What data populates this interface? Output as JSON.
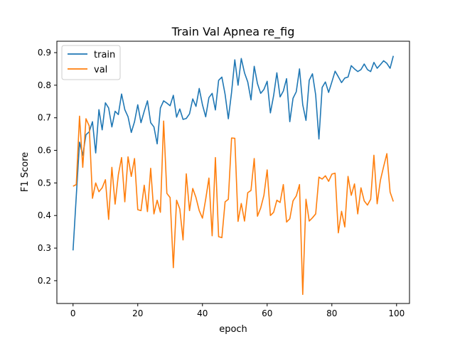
{
  "chart_data": {
    "type": "line",
    "title": "Train Val Apnea re_fig",
    "xlabel": "epoch",
    "ylabel": "F1 Score",
    "xlim": [
      -5,
      104
    ],
    "ylim": [
      0.13,
      0.935
    ],
    "xticks": [
      0,
      20,
      40,
      60,
      80,
      100
    ],
    "yticks": [
      0.2,
      0.3,
      0.4,
      0.5,
      0.6,
      0.7,
      0.8,
      0.9
    ],
    "grid": false,
    "legend_position": "top-left",
    "x": [
      0,
      1,
      2,
      3,
      4,
      5,
      6,
      7,
      8,
      9,
      10,
      11,
      12,
      13,
      14,
      15,
      16,
      17,
      18,
      19,
      20,
      21,
      22,
      23,
      24,
      25,
      26,
      27,
      28,
      29,
      30,
      31,
      32,
      33,
      34,
      35,
      36,
      37,
      38,
      39,
      40,
      41,
      42,
      43,
      44,
      45,
      46,
      47,
      48,
      49,
      50,
      51,
      52,
      53,
      54,
      55,
      56,
      57,
      58,
      59,
      60,
      61,
      62,
      63,
      64,
      65,
      66,
      67,
      68,
      69,
      70,
      71,
      72,
      73,
      74,
      75,
      76,
      77,
      78,
      79,
      80,
      81,
      82,
      83,
      84,
      85,
      86,
      87,
      88,
      89,
      90,
      91,
      92,
      93,
      94,
      95,
      96,
      97,
      98,
      99
    ],
    "series": [
      {
        "name": "train",
        "color": "#1f77b4",
        "values": [
          0.293,
          0.46,
          0.625,
          0.585,
          0.648,
          0.657,
          0.688,
          0.592,
          0.725,
          0.663,
          0.746,
          0.73,
          0.672,
          0.72,
          0.71,
          0.773,
          0.725,
          0.703,
          0.655,
          0.688,
          0.74,
          0.685,
          0.72,
          0.752,
          0.685,
          0.672,
          0.62,
          0.73,
          0.752,
          0.745,
          0.737,
          0.769,
          0.702,
          0.727,
          0.695,
          0.698,
          0.712,
          0.758,
          0.735,
          0.79,
          0.74,
          0.703,
          0.762,
          0.775,
          0.724,
          0.815,
          0.825,
          0.772,
          0.697,
          0.778,
          0.878,
          0.8,
          0.882,
          0.838,
          0.81,
          0.755,
          0.858,
          0.805,
          0.775,
          0.787,
          0.812,
          0.715,
          0.768,
          0.838,
          0.764,
          0.782,
          0.82,
          0.688,
          0.76,
          0.78,
          0.85,
          0.74,
          0.692,
          0.815,
          0.835,
          0.77,
          0.635,
          0.793,
          0.81,
          0.778,
          0.81,
          0.843,
          0.826,
          0.808,
          0.822,
          0.825,
          0.86,
          0.85,
          0.842,
          0.848,
          0.865,
          0.848,
          0.842,
          0.87,
          0.852,
          0.863,
          0.875,
          0.867,
          0.852,
          0.89
        ]
      },
      {
        "name": "val",
        "color": "#ff7f0e",
        "values": [
          0.49,
          0.495,
          0.705,
          0.548,
          0.697,
          0.675,
          0.453,
          0.5,
          0.473,
          0.485,
          0.51,
          0.388,
          0.548,
          0.435,
          0.525,
          0.578,
          0.442,
          0.58,
          0.52,
          0.575,
          0.418,
          0.415,
          0.493,
          0.412,
          0.545,
          0.405,
          0.447,
          0.41,
          0.69,
          0.468,
          0.455,
          0.24,
          0.447,
          0.42,
          0.325,
          0.528,
          0.415,
          0.483,
          0.455,
          0.415,
          0.392,
          0.45,
          0.515,
          0.338,
          0.578,
          0.335,
          0.332,
          0.442,
          0.45,
          0.638,
          0.637,
          0.382,
          0.437,
          0.383,
          0.47,
          0.477,
          0.575,
          0.398,
          0.423,
          0.462,
          0.54,
          0.4,
          0.41,
          0.447,
          0.44,
          0.495,
          0.38,
          0.39,
          0.445,
          0.46,
          0.495,
          0.158,
          0.45,
          0.383,
          0.393,
          0.405,
          0.518,
          0.512,
          0.522,
          0.505,
          0.527,
          0.53,
          0.347,
          0.413,
          0.365,
          0.52,
          0.462,
          0.497,
          0.405,
          0.485,
          0.445,
          0.432,
          0.45,
          0.585,
          0.436,
          0.508,
          0.55,
          0.59,
          0.472,
          0.443
        ]
      }
    ]
  }
}
